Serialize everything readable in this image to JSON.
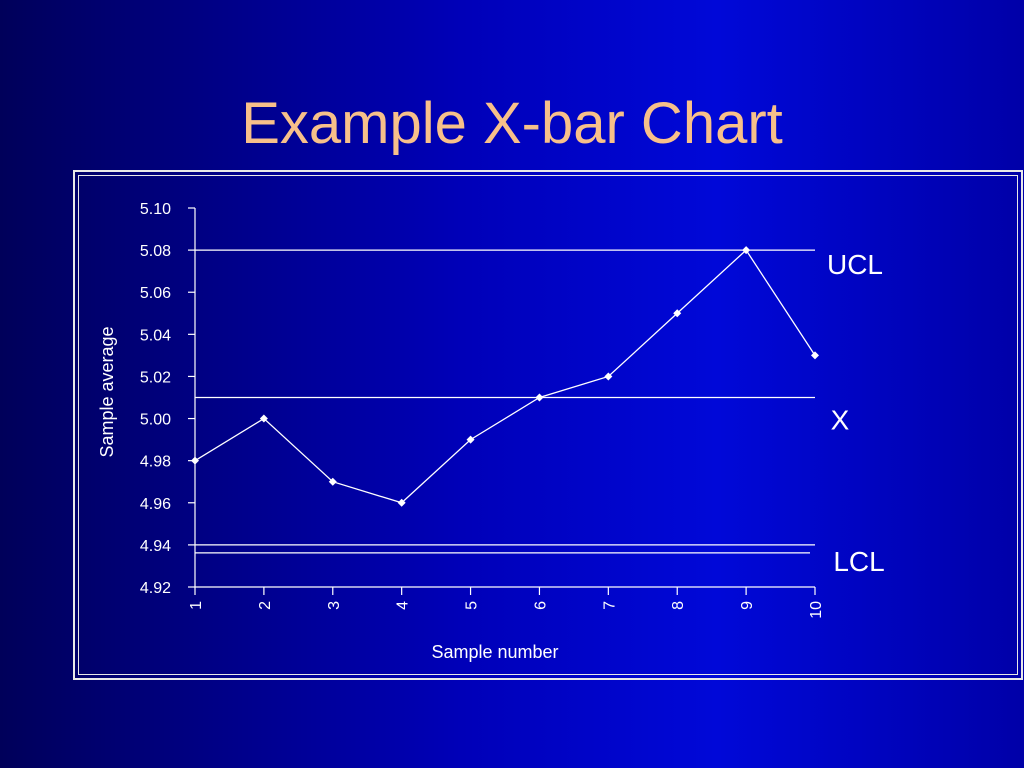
{
  "title": "Example X-bar Chart",
  "chart_data": {
    "type": "line",
    "xlabel": "Sample number",
    "ylabel": "Sample average",
    "x": [
      "1",
      "2",
      "3",
      "4",
      "5",
      "6",
      "7",
      "8",
      "9",
      "10"
    ],
    "values": [
      4.98,
      5.0,
      4.97,
      4.96,
      4.99,
      5.01,
      5.02,
      5.05,
      5.08,
      5.03
    ],
    "ylim": [
      4.92,
      5.1
    ],
    "yticks": [
      "4.92",
      "4.94",
      "4.96",
      "4.98",
      "5.00",
      "5.02",
      "5.04",
      "5.06",
      "5.08",
      "5.10"
    ],
    "control_limits": [
      {
        "label": "UCL",
        "value": 5.08
      },
      {
        "label": "X",
        "value": 5.01
      },
      {
        "label": "LCL",
        "value": 4.94
      }
    ],
    "grid": false,
    "line_color": "#ffffff",
    "background_color": "#0000b8",
    "title_color": "#f7c08a"
  }
}
